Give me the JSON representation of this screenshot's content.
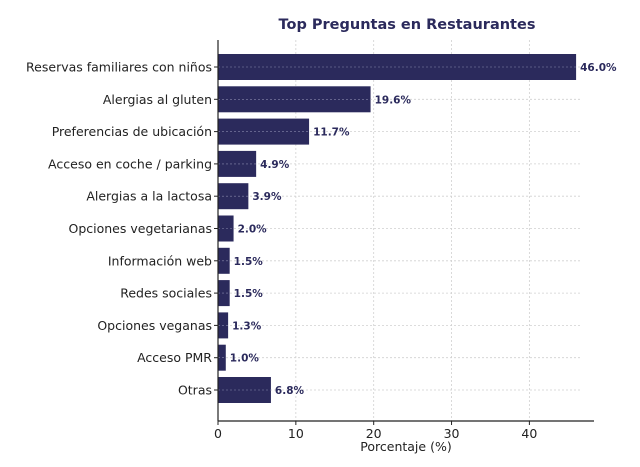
{
  "chart_data": {
    "type": "bar",
    "orientation": "horizontal",
    "title": "Top Preguntas en Restaurantes",
    "xlabel": "Porcentaje (%)",
    "ylabel": "",
    "xlim": [
      0,
      48.3
    ],
    "xticks": [
      0,
      10,
      20,
      30,
      40
    ],
    "grid": true,
    "categories": [
      "Reservas familiares con niños",
      "Alergias al gluten",
      "Preferencias de ubicación",
      "Acceso en coche / parking",
      "Alergias a la lactosa",
      "Opciones vegetarianas",
      "Información web",
      "Redes sociales",
      "Opciones veganas",
      "Acceso PMR",
      "Otras"
    ],
    "values": [
      46.0,
      19.6,
      11.7,
      4.9,
      3.9,
      2.0,
      1.5,
      1.5,
      1.3,
      1.0,
      6.8
    ],
    "data_labels": [
      "46.0%",
      "19.6%",
      "11.7%",
      "4.9%",
      "3.9%",
      "2.0%",
      "1.5%",
      "1.5%",
      "1.3%",
      "1.0%",
      "6.8%"
    ],
    "colors": {
      "bar": "#2b2a5c",
      "title": "#2b2a5c",
      "label": "#2b2a5c"
    }
  }
}
